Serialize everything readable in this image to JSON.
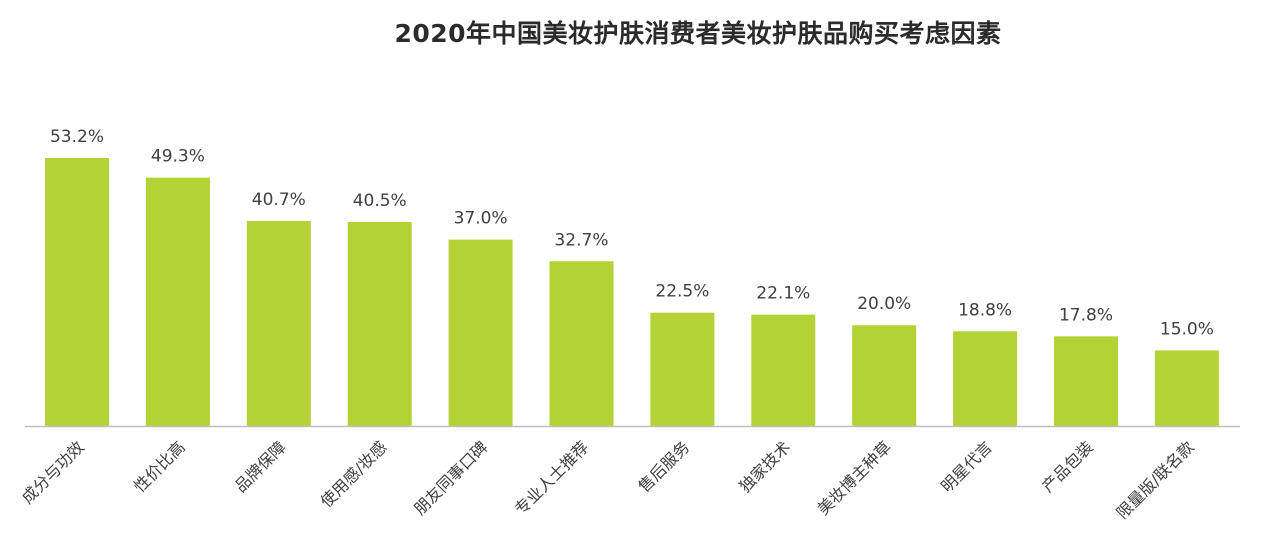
{
  "chart_data": {
    "type": "bar",
    "title": "2020年中国美妆护肤消费者美妆护肤品购买考虑因素",
    "categories": [
      "成分与功效",
      "性价比高",
      "品牌保障",
      "使用感/妆感",
      "朋友同事口碑",
      "专业人士推荐",
      "售后服务",
      "独家技术",
      "美妆博主种草",
      "明星代言",
      "产品包装",
      "限量版/联名款"
    ],
    "values": [
      53.2,
      49.3,
      40.7,
      40.5,
      37.0,
      32.7,
      22.5,
      22.1,
      20.0,
      18.8,
      17.8,
      15.0
    ],
    "value_labels": [
      "53.2%",
      "49.3%",
      "40.7%",
      "40.5%",
      "37.0%",
      "32.7%",
      "22.5%",
      "22.1%",
      "20.0%",
      "18.8%",
      "17.8%",
      "15.0%"
    ],
    "unit": "%",
    "ylim": [
      0,
      53.2
    ],
    "grid": false,
    "bar_color": "#b2d235",
    "axis_color": "#bfbfbf",
    "label_color": "#404040"
  }
}
